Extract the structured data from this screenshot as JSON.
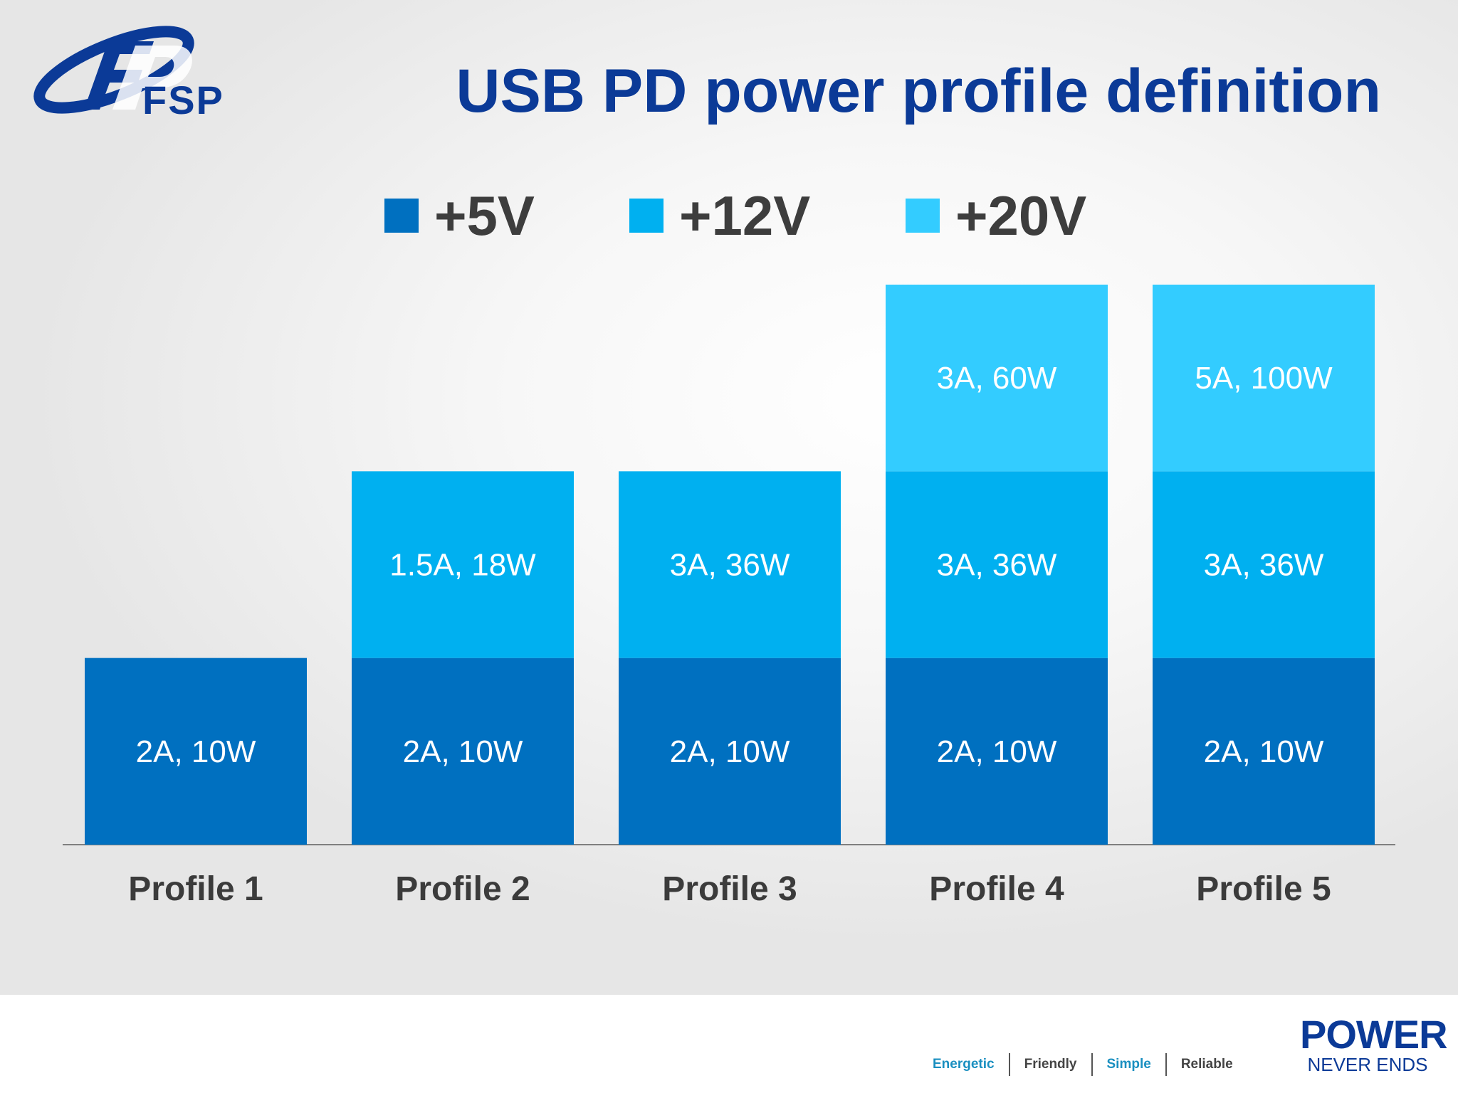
{
  "header": {
    "brand_name": "FSP",
    "title": "USB PD power profile definition"
  },
  "legend": [
    {
      "label": "+5V",
      "color": "#0070c0"
    },
    {
      "label": "+12V",
      "color": "#00b0f0"
    },
    {
      "label": "+20V",
      "color": "#33ccff"
    }
  ],
  "chart_data": {
    "type": "bar",
    "stacked": true,
    "title": "USB PD power profile definition",
    "xlabel": "",
    "ylabel": "",
    "categories": [
      "Profile 1",
      "Profile 2",
      "Profile 3",
      "Profile 4",
      "Profile 5"
    ],
    "series": [
      {
        "name": "+5V",
        "color": "#0070c0",
        "values": [
          1,
          1,
          1,
          1,
          1
        ],
        "labels": [
          "2A, 10W",
          "2A, 10W",
          "2A, 10W",
          "2A, 10W",
          "2A, 10W"
        ]
      },
      {
        "name": "+12V",
        "color": "#00b0f0",
        "values": [
          0,
          1,
          1,
          1,
          1
        ],
        "labels": [
          "",
          "1.5A, 18W",
          "3A, 36W",
          "3A, 36W",
          "3A, 36W"
        ]
      },
      {
        "name": "+20V",
        "color": "#33ccff",
        "values": [
          0,
          0,
          0,
          1,
          1
        ],
        "labels": [
          "",
          "",
          "",
          "3A, 60W",
          "5A, 100W"
        ]
      }
    ],
    "ylim": [
      0,
      3
    ],
    "grid": false,
    "legend_position": "top"
  },
  "footer": {
    "taglines": [
      {
        "text": "Energetic",
        "color": "#1a8fc0"
      },
      {
        "text": "Friendly",
        "color": "#444444"
      },
      {
        "text": "Simple",
        "color": "#1a8fc0"
      },
      {
        "text": "Reliable",
        "color": "#444444"
      }
    ],
    "brand_top": "POWER",
    "brand_bottom": "NEVER ENDS"
  }
}
